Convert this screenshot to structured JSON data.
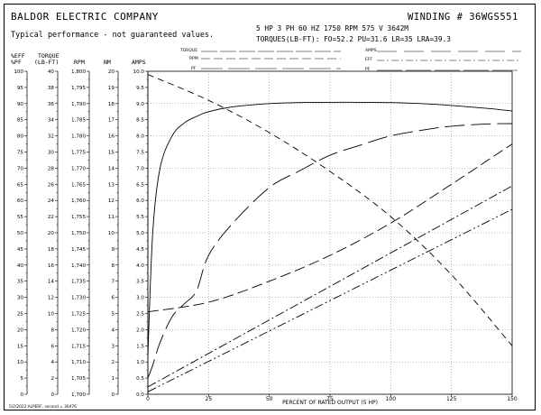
{
  "header": {
    "company": "BALDOR ELECTRIC COMPANY",
    "disclaimer": "Typical performance - not guaranteed values.",
    "winding": "WINDING # 36WGS551",
    "spec_line1": "5 HP  3 PH  60 HZ  1750 RPM  575 V  3642M",
    "spec_line2": "TORQUES(LB-FT): FO=52.2  PU=31.6  LR=35  LRA=39.3"
  },
  "legend_blocks": {
    "left_labels": [
      "TORQUE",
      "RPM",
      "PF"
    ],
    "right_labels": [
      "AMPS",
      "EFF",
      "PF"
    ]
  },
  "axis_headers": {
    "eff_pf": [
      "%EFF",
      "%PF"
    ],
    "torque": [
      "TORQUE",
      "(LB-FT)"
    ],
    "rpm": "RPM",
    "nm": "NM",
    "amps": "AMPS"
  },
  "footer": "5/2/2022 ALPERF, second = 30476",
  "chart_data": {
    "type": "line",
    "xlabel": "PERCENT OF RATED OUTPUT (5 HP)",
    "xlim": [
      0,
      150
    ],
    "x_ticks": [
      "0",
      "25",
      "50",
      "75",
      "100",
      "125",
      "150"
    ],
    "grid": true,
    "axes": {
      "eff_pf": {
        "range": [
          0,
          100
        ],
        "ticks": [
          "0",
          "5",
          "10",
          "15",
          "20",
          "25",
          "30",
          "35",
          "40",
          "45",
          "50",
          "55",
          "60",
          "65",
          "70",
          "75",
          "80",
          "85",
          "90",
          "95",
          "100"
        ]
      },
      "torque": {
        "range": [
          0,
          40
        ],
        "ticks": [
          "0",
          "2",
          "4",
          "6",
          "8",
          "10",
          "12",
          "14",
          "16",
          "18",
          "20",
          "22",
          "24",
          "26",
          "28",
          "30",
          "32",
          "34",
          "36",
          "38",
          "40"
        ]
      },
      "rpm": {
        "range": [
          1700,
          1800
        ],
        "ticks": [
          "1,700",
          "1,705",
          "1,710",
          "1,715",
          "1,720",
          "1,725",
          "1,730",
          "1,735",
          "1,740",
          "1,745",
          "1,750",
          "1,755",
          "1,760",
          "1,765",
          "1,770",
          "1,775",
          "1,780",
          "1,785",
          "1,790",
          "1,795",
          "1,800"
        ]
      },
      "nm": {
        "range": [
          0,
          20
        ],
        "ticks": [
          "0",
          "1",
          "2",
          "3",
          "4",
          "5",
          "6",
          "7",
          "8",
          "9",
          "10",
          "11",
          "12",
          "13",
          "14",
          "15",
          "16",
          "17",
          "18",
          "19",
          "20"
        ]
      },
      "amps": {
        "range": [
          0,
          10
        ],
        "ticks": [
          "0.0",
          "0.5",
          "1.0",
          "1.5",
          "2.0",
          "2.5",
          "3.0",
          "3.5",
          "4.0",
          "4.5",
          "5.0",
          "5.5",
          "6.0",
          "6.5",
          "7.0",
          "7.5",
          "8.0",
          "8.5",
          "9.0",
          "9.5",
          "10.0"
        ]
      }
    },
    "series": [
      {
        "style": "solid",
        "axis": "eff_pf",
        "x": [
          0,
          2,
          5,
          10,
          15,
          20,
          25,
          35,
          50,
          62,
          75,
          87,
          100,
          115,
          125,
          140,
          150
        ],
        "y": [
          12,
          50,
          70,
          80,
          84,
          86,
          87.5,
          89,
          90,
          90.3,
          90.4,
          90.4,
          90.3,
          89.9,
          89.4,
          88.5,
          87.7
        ]
      },
      {
        "style": "long-dash",
        "axis": "eff_pf",
        "x": [
          0,
          2,
          5,
          10,
          15,
          20,
          25,
          35,
          50,
          62,
          75,
          87,
          100,
          115,
          125,
          140,
          150
        ],
        "y": [
          5,
          9,
          16,
          24,
          28,
          32,
          43,
          53,
          64,
          69,
          74,
          77,
          80,
          82,
          83,
          83.7,
          83.8
        ]
      },
      {
        "style": "dash",
        "axis": "rpm",
        "x": [
          0,
          25,
          50,
          75,
          100,
          125,
          150
        ],
        "y": [
          1799,
          1791,
          1781,
          1769,
          1755,
          1737,
          1715
        ]
      },
      {
        "style": "medium-dash",
        "axis": "amps",
        "x": [
          0,
          25,
          50,
          75,
          100,
          125,
          150
        ],
        "y": [
          2.55,
          2.85,
          3.5,
          4.3,
          5.3,
          6.5,
          7.75
        ]
      },
      {
        "style": "dash-dot",
        "axis": "torque",
        "x": [
          0,
          150
        ],
        "y": [
          0.9,
          25.8
        ]
      },
      {
        "style": "dash-dot-dot",
        "axis": "torque",
        "x": [
          0,
          150
        ],
        "y": [
          0.3,
          22.9
        ]
      }
    ]
  }
}
